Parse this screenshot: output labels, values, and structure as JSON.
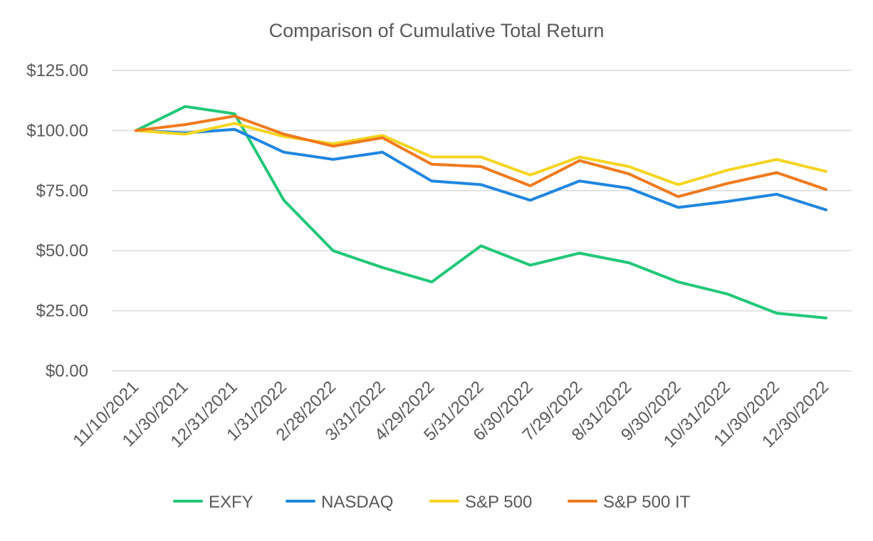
{
  "chart_data": {
    "type": "line",
    "title": "Comparison of Cumulative Total Return",
    "xlabel": "",
    "ylabel": "",
    "ylim": [
      0,
      125
    ],
    "y_ticks": [
      0,
      25,
      50,
      75,
      100,
      125
    ],
    "y_tick_labels": [
      "$0.00",
      "$25.00",
      "$50.00",
      "$75.00",
      "$100.00",
      "$125.00"
    ],
    "grid": true,
    "legend_position": "bottom",
    "categories": [
      "11/10/2021",
      "11/30/2021",
      "12/31/2021",
      "1/31/2022",
      "2/28/2022",
      "3/31/2022",
      "4/29/2022",
      "5/31/2022",
      "6/30/2022",
      "7/29/2022",
      "8/31/2022",
      "9/30/2022",
      "10/31/2022",
      "11/30/2022",
      "12/30/2022"
    ],
    "series": [
      {
        "name": "EXFY",
        "color": "#21c878",
        "values": [
          100,
          110,
          107,
          71,
          50,
          43,
          37,
          52,
          44,
          49,
          45,
          37,
          32,
          24,
          22
        ]
      },
      {
        "name": "NASDAQ",
        "color": "#1f86e0",
        "values": [
          100,
          99,
          100.5,
          91,
          88,
          91,
          79,
          77.5,
          71,
          79,
          76,
          68,
          70.5,
          73.5,
          67
        ]
      },
      {
        "name": "S&P 500",
        "color": "#f5d520",
        "values": [
          100,
          98.5,
          103,
          97.5,
          94.5,
          98,
          89,
          89,
          81.5,
          89,
          85,
          77.5,
          83.5,
          88,
          83
        ]
      },
      {
        "name": "S&P 500 IT",
        "color": "#f07a1d",
        "values": [
          100,
          102.5,
          106,
          98.5,
          93.5,
          97,
          86,
          85,
          77,
          87.5,
          82,
          72.5,
          78,
          82.5,
          75.5
        ]
      }
    ]
  }
}
